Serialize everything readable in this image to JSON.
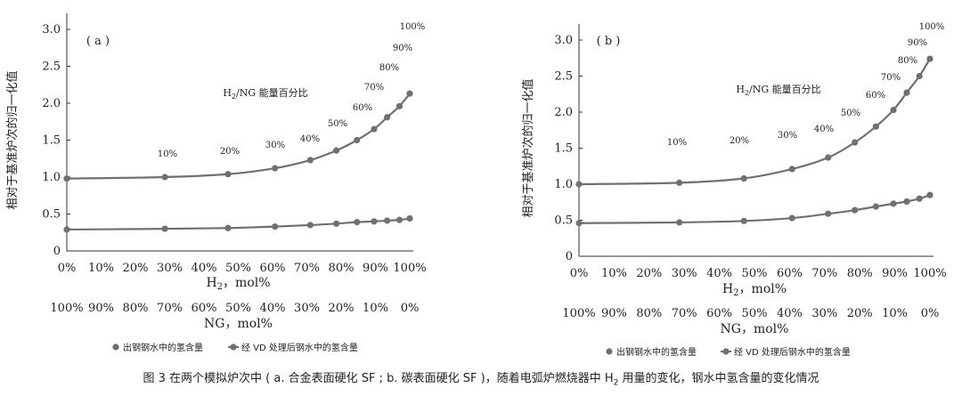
{
  "caption": {
    "text_before": "图 3  在两个模拟炉次中 ( a. 合金表面硬化 SF ; b. 碳表面硬化 SF )，随着电弧炉燃烧器中 H",
    "sub": "2",
    "text_after": " 用量的变化，钢水中氢含量的变化情况"
  },
  "chart_data": [
    {
      "type": "line",
      "panel_label": "( a )",
      "ylabel": "相对于基准炉次的归一化值",
      "ylim": [
        0,
        3.0
      ],
      "yticks": [
        "0",
        "0.5",
        "1.0",
        "1.5",
        "2.0",
        "2.5",
        "3.0"
      ],
      "xlabel_h2": "H2，mol%",
      "xlabel_ng": "NG，mol%",
      "x_ticks_h2": [
        "0%",
        "10%",
        "20%",
        "30%",
        "40%",
        "50%",
        "60%",
        "70%",
        "80%",
        "90%",
        "100%"
      ],
      "x_ticks_ng": [
        "100%",
        "90%",
        "80%",
        "70%",
        "60%",
        "50%",
        "40%",
        "30%",
        "20%",
        "10%",
        "0%"
      ],
      "energy_label": "H2/NG 能量百分比",
      "energy_pct_labels": [
        "10%",
        "20%",
        "30%",
        "40%",
        "50%",
        "60%",
        "70%",
        "80%",
        "90%",
        "100%"
      ],
      "series": [
        {
          "name": "出钢钢水中的氢含量",
          "color": "#6f6f78",
          "x": [
            0,
            28.6,
            47,
            60.7,
            71,
            78.6,
            84.6,
            89.6,
            93.4,
            97,
            100
          ],
          "y": [
            0.98,
            1.0,
            1.04,
            1.12,
            1.23,
            1.36,
            1.5,
            1.65,
            1.81,
            1.96,
            2.13
          ]
        },
        {
          "name": "经 VD 处理后钢水中的氢含量",
          "color": "#6f6f78",
          "x": [
            0,
            28.6,
            47,
            60.7,
            71,
            78.6,
            84.6,
            89.6,
            93.4,
            97,
            100
          ],
          "y": [
            0.29,
            0.3,
            0.31,
            0.33,
            0.35,
            0.37,
            0.39,
            0.4,
            0.41,
            0.42,
            0.44
          ]
        }
      ]
    },
    {
      "type": "line",
      "panel_label": "( b )",
      "ylabel": "相对于基准炉次的归一化值",
      "ylim": [
        0,
        3.0
      ],
      "yticks": [
        "0",
        "0.5",
        "1.0",
        "1.5",
        "2.0",
        "2.5",
        "3.0"
      ],
      "xlabel_h2": "H2，mol%",
      "xlabel_ng": "NG，mol%",
      "x_ticks_h2": [
        "0%",
        "10%",
        "20%",
        "30%",
        "40%",
        "50%",
        "60%",
        "70%",
        "80%",
        "90%",
        "100%"
      ],
      "x_ticks_ng": [
        "100%",
        "90%",
        "80%",
        "70%",
        "60%",
        "50%",
        "40%",
        "30%",
        "20%",
        "10%",
        "0%"
      ],
      "energy_label": "H2/NG 能量百分比",
      "energy_pct_labels": [
        "10%",
        "20%",
        "30%",
        "40%",
        "50%",
        "60%",
        "70%",
        "80%",
        "90%",
        "100%"
      ],
      "series": [
        {
          "name": "出钢钢水中的氢含量",
          "color": "#6f6f78",
          "x": [
            0,
            28.6,
            47,
            60.7,
            71,
            78.6,
            84.6,
            89.6,
            93.4,
            97,
            100
          ],
          "y": [
            1.0,
            1.02,
            1.08,
            1.21,
            1.37,
            1.58,
            1.8,
            2.03,
            2.27,
            2.5,
            2.74
          ]
        },
        {
          "name": "经 VD 处理后钢水中的氢含量",
          "color": "#6f6f78",
          "x": [
            0,
            28.6,
            47,
            60.7,
            71,
            78.6,
            84.6,
            89.6,
            93.4,
            97,
            100
          ],
          "y": [
            0.46,
            0.47,
            0.49,
            0.53,
            0.59,
            0.64,
            0.69,
            0.73,
            0.76,
            0.8,
            0.85
          ]
        }
      ]
    }
  ]
}
